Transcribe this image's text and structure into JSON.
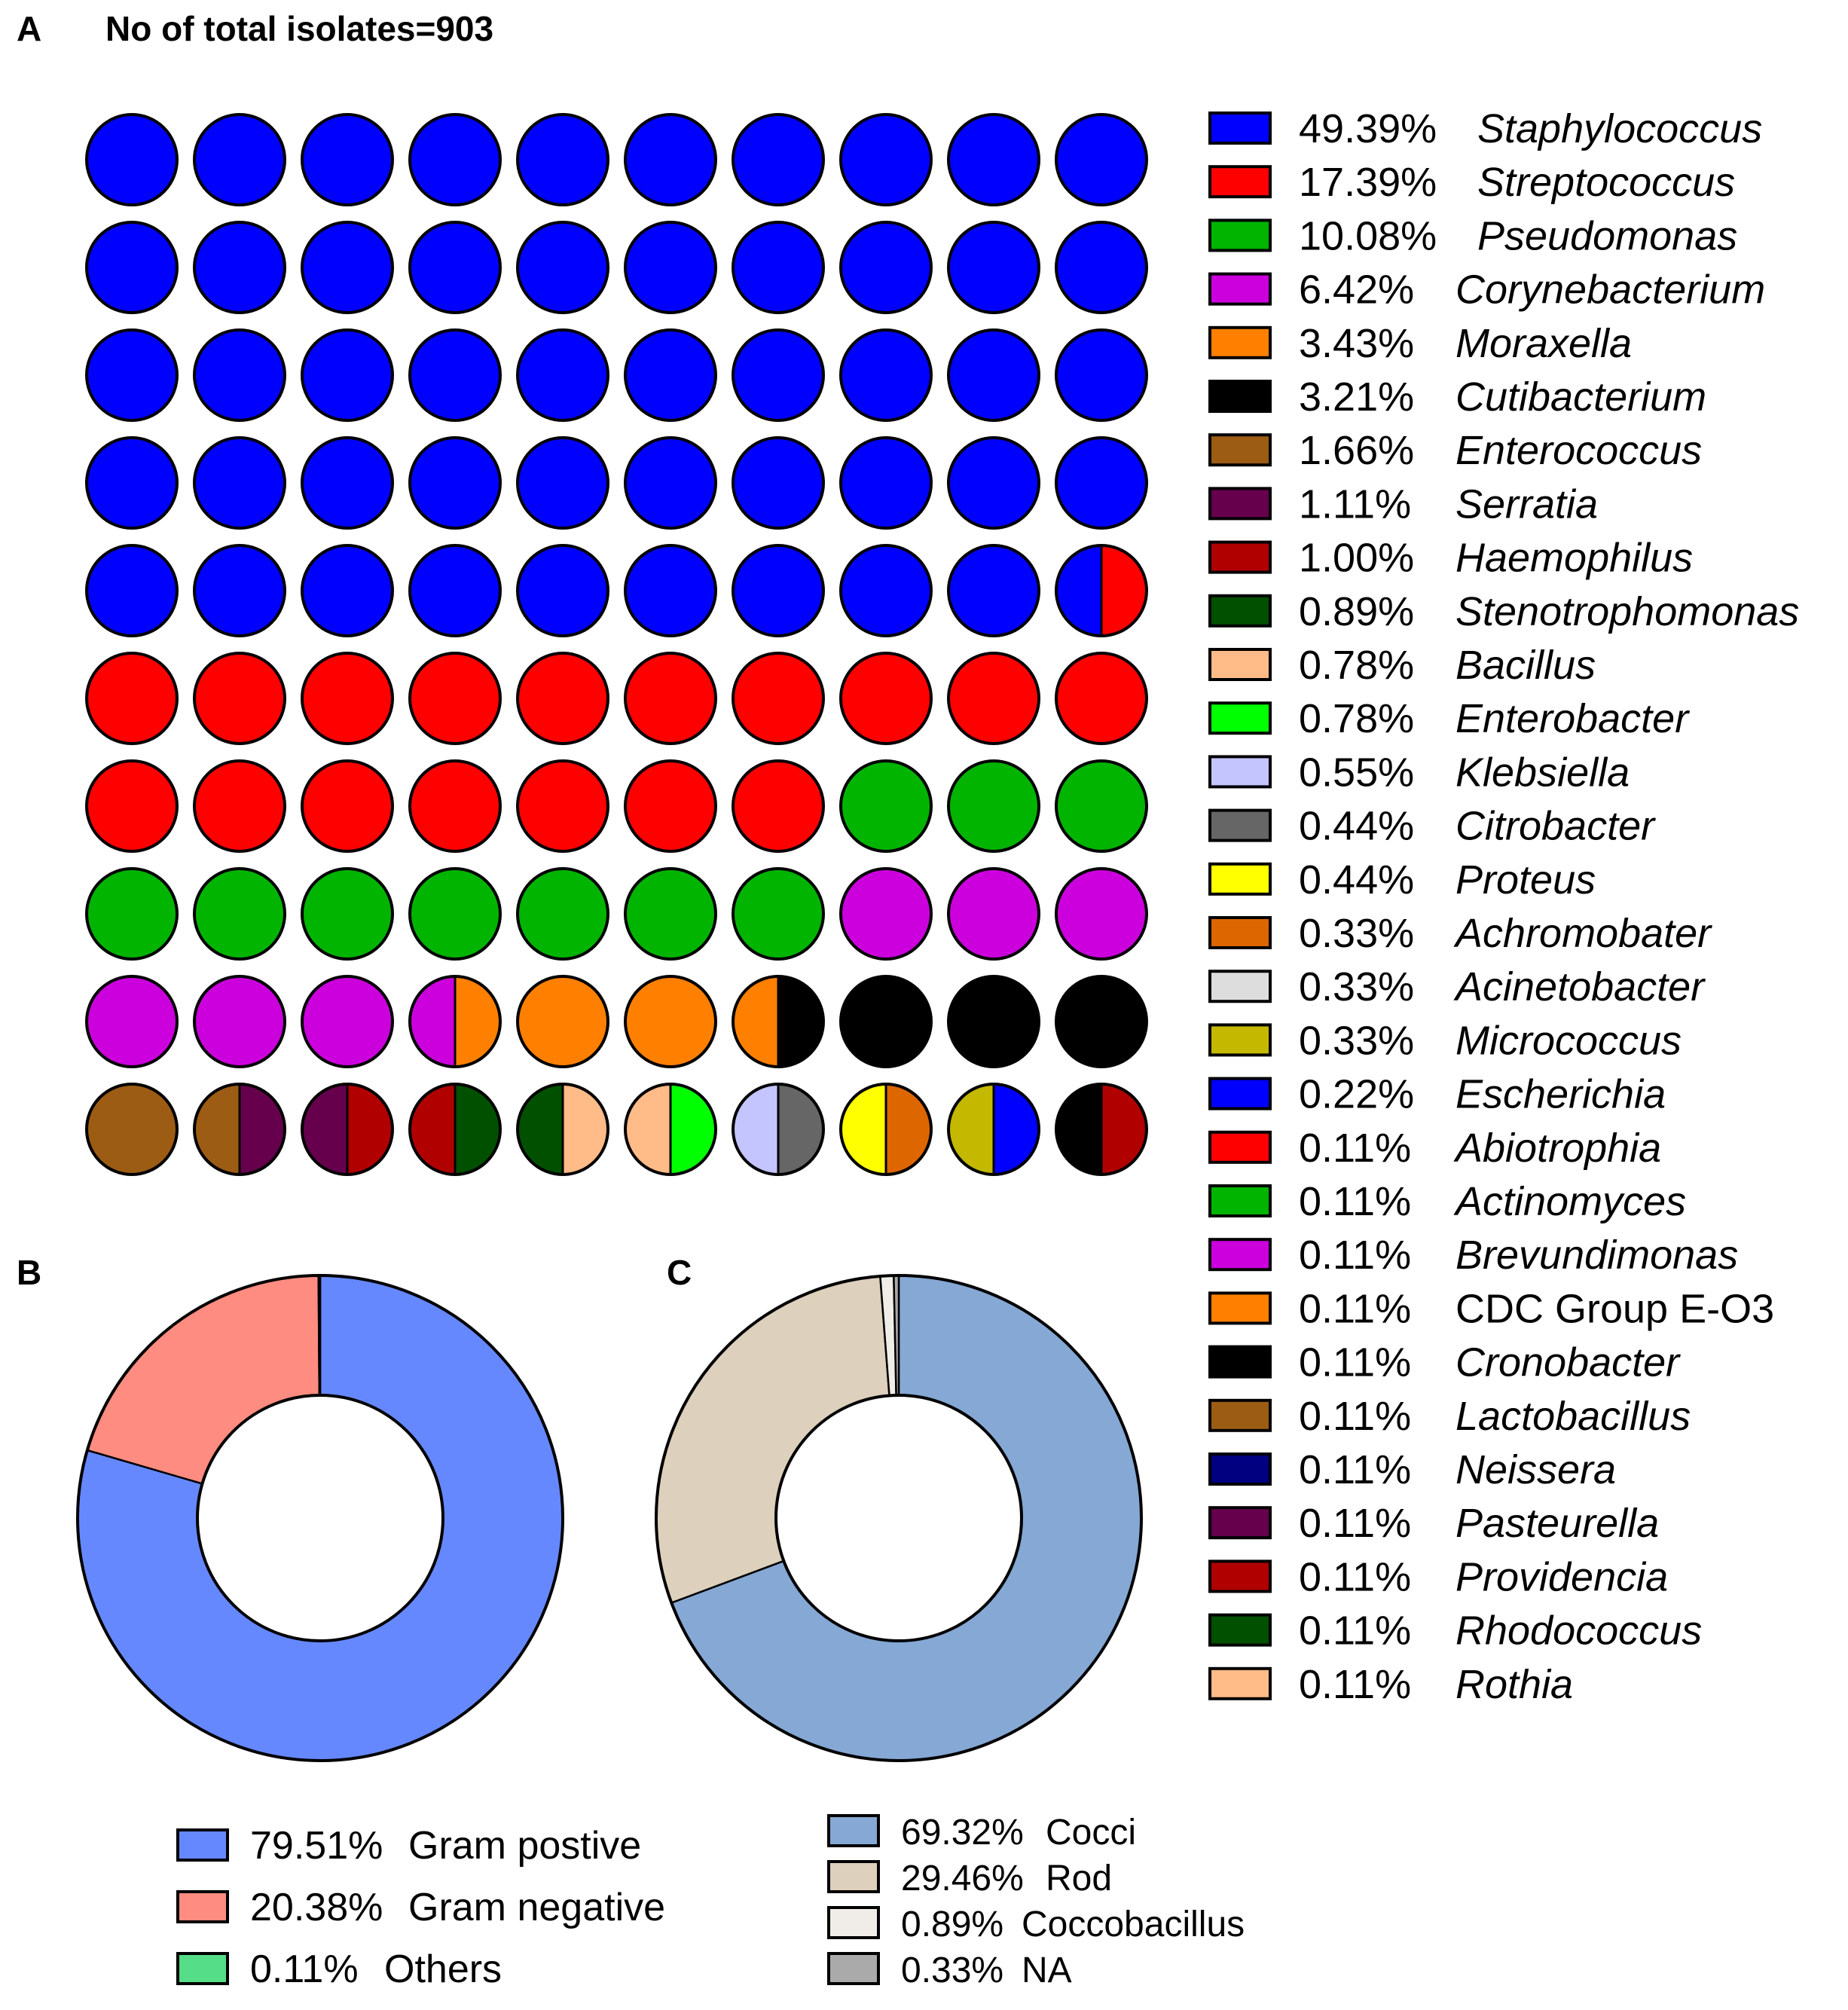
{
  "panels": {
    "a": {
      "letter": "A",
      "title": "No of total isolates=903"
    },
    "b": {
      "letter": "B"
    },
    "c": {
      "letter": "C"
    }
  },
  "chart_data": [
    {
      "type": "waffle",
      "panel": "A",
      "title": "No of total isolates=903",
      "grid_rows": 10,
      "grid_cols": 10,
      "legend_position": "right",
      "series": [
        {
          "label": "49.39%",
          "name": "Staphylococcus",
          "value": 49.39,
          "color": "#0000ff",
          "italic": true
        },
        {
          "label": "17.39%",
          "name": "Streptococcus",
          "value": 17.39,
          "color": "#ff0000",
          "italic": true
        },
        {
          "label": "10.08%",
          "name": "Pseudomonas",
          "value": 10.08,
          "color": "#00b400",
          "italic": true
        },
        {
          "label": "6.42%",
          "name": "Corynebacterium",
          "value": 6.42,
          "color": "#cc00dd",
          "italic": true
        },
        {
          "label": "3.43%",
          "name": "Moraxella",
          "value": 3.43,
          "color": "#ff8000",
          "italic": true
        },
        {
          "label": "3.21%",
          "name": "Cutibacterium",
          "value": 3.21,
          "color": "#000000",
          "italic": true
        },
        {
          "label": "1.66%",
          "name": "Enterococcus",
          "value": 1.66,
          "color": "#9c5c14",
          "italic": true
        },
        {
          "label": "1.11%",
          "name": "Serratia",
          "value": 1.11,
          "color": "#66004d",
          "italic": true
        },
        {
          "label": "1.00%",
          "name": "Haemophilus",
          "value": 1.0,
          "color": "#b00000",
          "italic": true
        },
        {
          "label": "0.89%",
          "name": "Stenotrophomonas",
          "value": 0.89,
          "color": "#005000",
          "italic": true
        },
        {
          "label": "0.78%",
          "name": "Bacillus",
          "value": 0.78,
          "color": "#ffbb88",
          "italic": true
        },
        {
          "label": "0.78%",
          "name": "Enterobacter",
          "value": 0.78,
          "color": "#00ff00",
          "italic": true
        },
        {
          "label": "0.55%",
          "name": "Klebsiella",
          "value": 0.55,
          "color": "#c4c4ff",
          "italic": true
        },
        {
          "label": "0.44%",
          "name": "Citrobacter",
          "value": 0.44,
          "color": "#666666",
          "italic": true
        },
        {
          "label": "0.44%",
          "name": "Proteus",
          "value": 0.44,
          "color": "#ffff00",
          "italic": true
        },
        {
          "label": "0.33%",
          "name": "Achromobater",
          "value": 0.33,
          "color": "#dd6600",
          "italic": true
        },
        {
          "label": "0.33%",
          "name": "Acinetobacter",
          "value": 0.33,
          "color": "#dddddd",
          "italic": true
        },
        {
          "label": "0.33%",
          "name": "Micrococcus",
          "value": 0.33,
          "color": "#c4b800",
          "italic": true
        },
        {
          "label": "0.22%",
          "name": "Escherichia",
          "value": 0.22,
          "color": "#0000ff",
          "italic": true
        },
        {
          "label": "0.11%",
          "name": "Abiotrophia",
          "value": 0.11,
          "color": "#ff0000",
          "italic": true
        },
        {
          "label": "0.11%",
          "name": "Actinomyces",
          "value": 0.11,
          "color": "#00b400",
          "italic": true
        },
        {
          "label": "0.11%",
          "name": "Brevundimonas",
          "value": 0.11,
          "color": "#cc00dd",
          "italic": true
        },
        {
          "label": "0.11%",
          "name": "CDC Group E-O3",
          "value": 0.11,
          "color": "#ff8000",
          "italic": false
        },
        {
          "label": "0.11%",
          "name": "Cronobacter",
          "value": 0.11,
          "color": "#000000",
          "italic": true
        },
        {
          "label": "0.11%",
          "name": "Lactobacillus",
          "value": 0.11,
          "color": "#9c5c14",
          "italic": true
        },
        {
          "label": "0.11%",
          "name": "Neissera",
          "value": 0.11,
          "color": "#000080",
          "italic": true
        },
        {
          "label": "0.11%",
          "name": "Pasteurella",
          "value": 0.11,
          "color": "#66004d",
          "italic": true
        },
        {
          "label": "0.11%",
          "name": "Providencia",
          "value": 0.11,
          "color": "#b00000",
          "italic": true
        },
        {
          "label": "0.11%",
          "name": "Rhodococcus",
          "value": 0.11,
          "color": "#005000",
          "italic": true
        },
        {
          "label": "0.11%",
          "name": "Rothia",
          "value": 0.11,
          "color": "#ffbb88",
          "italic": true
        }
      ],
      "cells": [
        [
          "#0000ff",
          "#0000ff",
          "#0000ff",
          "#0000ff",
          "#0000ff",
          "#0000ff",
          "#0000ff",
          "#0000ff",
          "#0000ff",
          "#0000ff"
        ],
        [
          "#0000ff",
          "#0000ff",
          "#0000ff",
          "#0000ff",
          "#0000ff",
          "#0000ff",
          "#0000ff",
          "#0000ff",
          "#0000ff",
          "#0000ff"
        ],
        [
          "#0000ff",
          "#0000ff",
          "#0000ff",
          "#0000ff",
          "#0000ff",
          "#0000ff",
          "#0000ff",
          "#0000ff",
          "#0000ff",
          "#0000ff"
        ],
        [
          "#0000ff",
          "#0000ff",
          "#0000ff",
          "#0000ff",
          "#0000ff",
          "#0000ff",
          "#0000ff",
          "#0000ff",
          "#0000ff",
          "#0000ff"
        ],
        [
          "#0000ff",
          "#0000ff",
          "#0000ff",
          "#0000ff",
          "#0000ff",
          "#0000ff",
          "#0000ff",
          "#0000ff",
          "#0000ff",
          [
            "#0000ff",
            "#ff0000"
          ]
        ],
        [
          "#ff0000",
          "#ff0000",
          "#ff0000",
          "#ff0000",
          "#ff0000",
          "#ff0000",
          "#ff0000",
          "#ff0000",
          "#ff0000",
          "#ff0000"
        ],
        [
          "#ff0000",
          "#ff0000",
          "#ff0000",
          "#ff0000",
          "#ff0000",
          "#ff0000",
          "#ff0000",
          "#00b400",
          "#00b400",
          "#00b400"
        ],
        [
          "#00b400",
          "#00b400",
          "#00b400",
          "#00b400",
          "#00b400",
          "#00b400",
          "#00b400",
          "#cc00dd",
          "#cc00dd",
          "#cc00dd"
        ],
        [
          "#cc00dd",
          "#cc00dd",
          "#cc00dd",
          [
            "#cc00dd",
            "#ff8000"
          ],
          "#ff8000",
          "#ff8000",
          [
            "#ff8000",
            "#000000"
          ],
          "#000000",
          "#000000",
          "#000000"
        ],
        [
          "#9c5c14",
          [
            "#9c5c14",
            "#66004d"
          ],
          [
            "#66004d",
            "#b00000"
          ],
          [
            "#b00000",
            "#005000"
          ],
          [
            "#005000",
            "#ffbb88"
          ],
          [
            "#ffbb88",
            "#00ff00"
          ],
          [
            "#c4c4ff",
            "#666666"
          ],
          [
            "#ffff00",
            "#dd6600"
          ],
          [
            "#c4b800",
            "#0000ff"
          ],
          [
            "#000000",
            "#b00000"
          ]
        ]
      ]
    },
    {
      "type": "donut",
      "panel": "B",
      "legend_position": "bottom",
      "series": [
        {
          "label": "79.51%",
          "name": "Gram postive",
          "value": 79.51,
          "color": "#6688ff"
        },
        {
          "label": "20.38%",
          "name": "Gram negative",
          "value": 20.38,
          "color": "#ff8c80"
        },
        {
          "label": "0.11%",
          "name": "Others",
          "value": 0.11,
          "color": "#55dd88"
        }
      ]
    },
    {
      "type": "donut",
      "panel": "C",
      "legend_position": "bottom",
      "series": [
        {
          "label": "69.32%",
          "name": "Cocci",
          "value": 69.32,
          "color": "#85a8d4"
        },
        {
          "label": "29.46%",
          "name": "Rod",
          "value": 29.46,
          "color": "#ddd0bc"
        },
        {
          "label": "0.89%",
          "name": "Coccobacillus",
          "value": 0.89,
          "color": "#f0ede8"
        },
        {
          "label": "0.33%",
          "name": "NA",
          "value": 0.33,
          "color": "#aaaaaa"
        }
      ]
    }
  ]
}
